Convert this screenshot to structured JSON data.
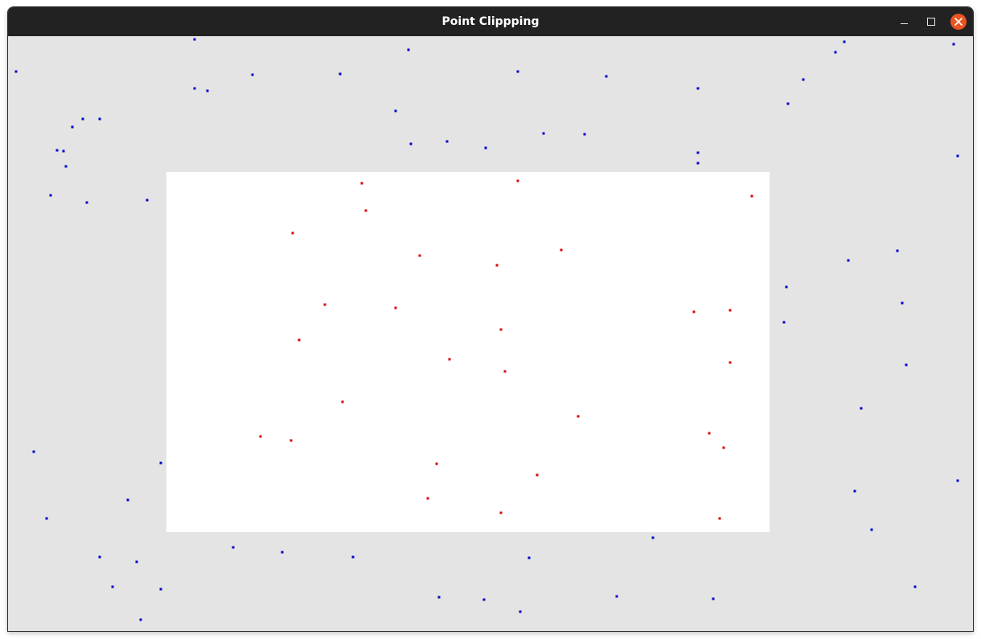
{
  "window": {
    "title": "Point Clippping"
  },
  "controls": {
    "minimize_icon": "minimize-icon",
    "maximize_icon": "maximize-icon",
    "close_icon": "close-icon"
  },
  "colors": {
    "titlebar": "#222222",
    "canvas_background": "#e4e4e4",
    "clip_window": "#ffffff",
    "outside_point": "#0000cc",
    "inside_point": "#dd0000",
    "close_button": "#e95420"
  },
  "clip_window": {
    "x_min": 207,
    "y_min": 214,
    "x_max": 957,
    "y_max": 662
  },
  "points": [
    [
      242,
      49
    ],
    [
      508,
      62
    ],
    [
      1050,
      52
    ],
    [
      1186,
      55
    ],
    [
      1039,
      65
    ],
    [
      20,
      89
    ],
    [
      314,
      93
    ],
    [
      423,
      92
    ],
    [
      644,
      89
    ],
    [
      754,
      95
    ],
    [
      999,
      99
    ],
    [
      242,
      110
    ],
    [
      258,
      113
    ],
    [
      868,
      110
    ],
    [
      980,
      129
    ],
    [
      492,
      138
    ],
    [
      103,
      148
    ],
    [
      124,
      148
    ],
    [
      90,
      158
    ],
    [
      676,
      166
    ],
    [
      727,
      167
    ],
    [
      511,
      179
    ],
    [
      556,
      176
    ],
    [
      604,
      184
    ],
    [
      71,
      187
    ],
    [
      79,
      188
    ],
    [
      868,
      190
    ],
    [
      1191,
      194
    ],
    [
      82,
      207
    ],
    [
      868,
      203
    ],
    [
      63,
      243
    ],
    [
      108,
      252
    ],
    [
      183,
      249
    ],
    [
      1116,
      312
    ],
    [
      1055,
      324
    ],
    [
      978,
      357
    ],
    [
      1122,
      377
    ],
    [
      975,
      401
    ],
    [
      1127,
      454
    ],
    [
      1071,
      508
    ],
    [
      42,
      562
    ],
    [
      200,
      576
    ],
    [
      1191,
      598
    ],
    [
      1063,
      611
    ],
    [
      159,
      622
    ],
    [
      58,
      645
    ],
    [
      1084,
      659
    ],
    [
      812,
      669
    ],
    [
      290,
      681
    ],
    [
      351,
      687
    ],
    [
      439,
      693
    ],
    [
      658,
      694
    ],
    [
      124,
      693
    ],
    [
      170,
      699
    ],
    [
      140,
      730
    ],
    [
      200,
      733
    ],
    [
      1138,
      730
    ],
    [
      546,
      743
    ],
    [
      602,
      746
    ],
    [
      767,
      742
    ],
    [
      887,
      745
    ],
    [
      647,
      761
    ],
    [
      175,
      771
    ],
    [
      450,
      228
    ],
    [
      644,
      225
    ],
    [
      935,
      244
    ],
    [
      455,
      262
    ],
    [
      364,
      290
    ],
    [
      522,
      318
    ],
    [
      698,
      311
    ],
    [
      618,
      330
    ],
    [
      404,
      379
    ],
    [
      492,
      383
    ],
    [
      863,
      388
    ],
    [
      908,
      386
    ],
    [
      623,
      410
    ],
    [
      372,
      423
    ],
    [
      559,
      447
    ],
    [
      628,
      462
    ],
    [
      908,
      451
    ],
    [
      426,
      500
    ],
    [
      719,
      518
    ],
    [
      324,
      543
    ],
    [
      362,
      548
    ],
    [
      882,
      539
    ],
    [
      900,
      557
    ],
    [
      543,
      577
    ],
    [
      668,
      591
    ],
    [
      532,
      620
    ],
    [
      623,
      638
    ],
    [
      895,
      645
    ]
  ]
}
